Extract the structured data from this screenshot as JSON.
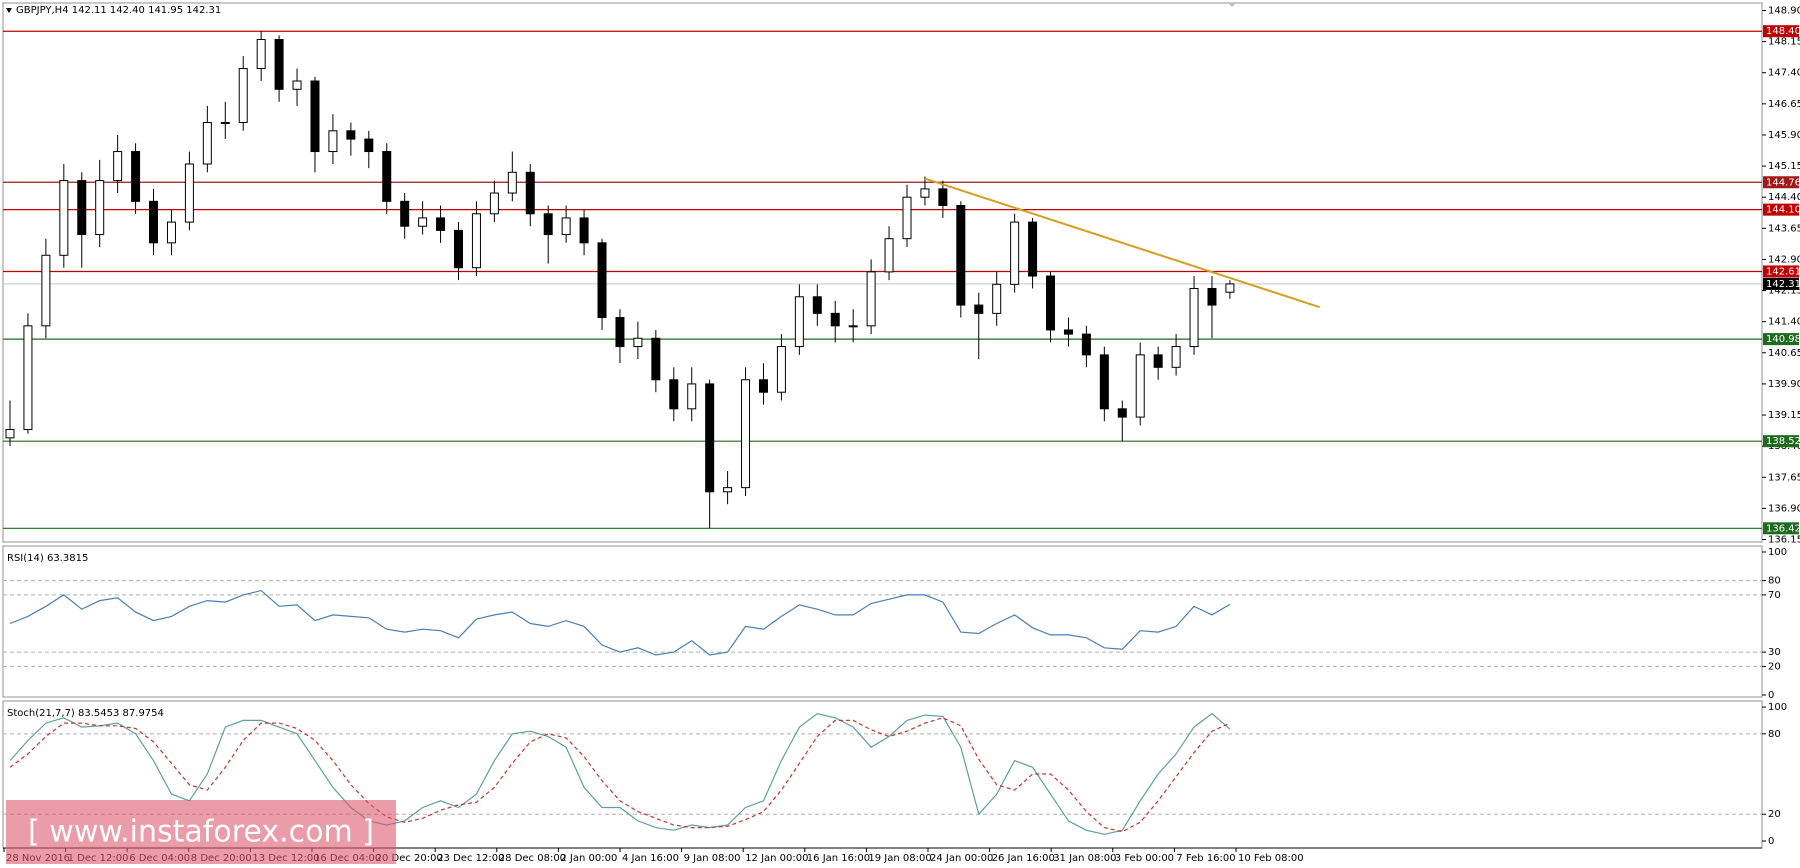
{
  "chart_data": [
    {
      "type": "candlestick",
      "title": "GBPJPY,H4 142.11 142.40 141.95 142.31",
      "open": [
        138.6,
        138.8,
        141.3,
        143.0,
        144.8,
        143.5,
        144.8,
        145.5,
        144.3,
        143.3,
        143.8,
        145.2,
        146.2,
        146.2,
        147.5,
        148.2,
        147.0,
        147.2,
        145.5,
        146.0,
        145.8,
        145.5,
        144.3,
        143.7,
        143.9,
        143.6,
        142.7,
        144.0,
        144.5,
        145.0,
        144.0,
        143.5,
        143.9,
        143.3,
        141.5,
        140.8,
        141.0,
        140.0,
        139.3,
        139.9,
        137.3,
        137.4,
        140.0,
        139.7,
        140.8,
        142.0,
        141.6,
        141.3,
        141.3,
        142.6,
        143.4,
        144.4,
        144.6,
        144.2,
        141.8,
        141.6,
        142.3,
        143.8,
        142.5,
        141.2,
        141.1,
        140.6,
        139.3,
        139.1,
        140.6,
        140.3,
        140.8,
        142.2,
        142.11
      ],
      "high": [
        139.5,
        141.6,
        143.4,
        145.2,
        145.0,
        145.3,
        145.9,
        145.7,
        144.6,
        144.1,
        145.5,
        146.6,
        146.7,
        147.8,
        148.4,
        148.3,
        147.5,
        147.3,
        146.4,
        146.2,
        146.0,
        145.7,
        144.5,
        144.3,
        144.2,
        143.8,
        144.3,
        144.8,
        145.5,
        145.2,
        144.2,
        144.2,
        144.1,
        143.4,
        141.7,
        141.4,
        141.2,
        140.3,
        140.3,
        140.0,
        137.8,
        140.3,
        140.4,
        141.1,
        142.3,
        142.3,
        141.9,
        141.7,
        142.9,
        143.7,
        144.7,
        144.9,
        144.8,
        144.3,
        142.1,
        142.6,
        144.0,
        143.9,
        142.6,
        141.5,
        141.3,
        140.8,
        139.5,
        140.9,
        140.8,
        141.1,
        142.5,
        142.5,
        142.4
      ],
      "low": [
        138.4,
        138.7,
        141.0,
        142.7,
        142.7,
        143.2,
        144.5,
        144.0,
        143.0,
        143.0,
        143.6,
        145.0,
        145.8,
        146.0,
        147.2,
        146.7,
        146.6,
        145.0,
        145.2,
        145.4,
        145.1,
        144.0,
        143.4,
        143.5,
        143.3,
        142.4,
        142.5,
        143.8,
        144.3,
        143.7,
        142.8,
        143.3,
        143.0,
        141.2,
        140.4,
        140.5,
        139.7,
        139.0,
        139.0,
        136.42,
        137.0,
        137.2,
        139.4,
        139.5,
        140.6,
        141.3,
        140.9,
        140.9,
        141.1,
        142.4,
        143.2,
        144.2,
        143.9,
        141.5,
        140.5,
        141.3,
        142.1,
        142.2,
        140.9,
        140.8,
        140.3,
        139.0,
        138.52,
        138.9,
        140.0,
        140.1,
        140.6,
        141.0,
        141.95
      ],
      "close": [
        138.8,
        141.3,
        143.0,
        144.8,
        143.5,
        144.8,
        145.5,
        144.3,
        143.3,
        143.8,
        145.2,
        146.2,
        146.2,
        147.5,
        148.2,
        147.0,
        147.2,
        145.5,
        146.0,
        145.8,
        145.5,
        144.3,
        143.7,
        143.9,
        143.6,
        142.7,
        144.0,
        144.5,
        145.0,
        144.0,
        143.5,
        143.9,
        143.3,
        141.5,
        140.8,
        141.0,
        140.0,
        139.3,
        139.9,
        137.3,
        137.4,
        140.0,
        139.7,
        140.8,
        142.0,
        141.6,
        141.3,
        141.3,
        142.6,
        143.4,
        144.4,
        144.6,
        144.2,
        141.8,
        141.6,
        142.3,
        143.8,
        142.5,
        141.2,
        141.1,
        140.6,
        139.3,
        139.1,
        140.6,
        140.3,
        140.8,
        142.2,
        141.8,
        142.31
      ],
      "up_color": "#ffffff",
      "down_color": "#000000",
      "ylim": [
        136.09,
        149.08
      ],
      "yticks": [
        {
          "value": 148.9,
          "label": "148.90"
        },
        148.15,
        {
          "value": 147.4,
          "label": "147.40"
        },
        146.65,
        {
          "value": 145.9,
          "label": "145.90"
        },
        145.15,
        {
          "value": 144.4,
          "label": "144.40"
        },
        143.65,
        {
          "value": 142.9,
          "label": "142.90"
        },
        142.15,
        {
          "value": 141.4,
          "label": "141.40"
        },
        140.65,
        {
          "value": 139.9,
          "label": "139.90"
        },
        139.15,
        {
          "value": 138.4,
          "label": "138.40"
        },
        137.65,
        {
          "value": 136.9,
          "label": "136.90"
        },
        136.15
      ],
      "levels": [
        {
          "value": 148.4,
          "label": "148.40",
          "color": "#c00000"
        },
        {
          "value": 144.76,
          "color": "#a01818"
        },
        {
          "value": 144.1,
          "label": "144.10",
          "color": "#c00000"
        },
        {
          "value": 142.61,
          "color": "#c00000"
        },
        {
          "value": 140.98,
          "color": "#1e6b1e"
        },
        {
          "value": 138.52,
          "color": "#1e6b1e"
        },
        {
          "value": 136.42,
          "color": "#1e6b1e"
        }
      ],
      "bid": {
        "value": 142.31,
        "color": "#000000",
        "line_color": "#c8c8c8"
      },
      "trendline": {
        "color": "#d4a020",
        "x": [
          51,
          73
        ],
        "y": [
          144.85,
          141.75
        ]
      }
    },
    {
      "type": "line",
      "title": "RSI(14) 63.3815",
      "color": "#4a7fb5",
      "values": [
        50,
        55,
        62,
        70,
        60,
        66,
        68,
        58,
        52,
        55,
        62,
        66,
        65,
        70,
        73,
        62,
        63,
        52,
        56,
        55,
        54,
        46,
        44,
        46,
        45,
        40,
        53,
        56,
        58,
        50,
        48,
        52,
        48,
        35,
        30,
        33,
        28,
        30,
        38,
        28,
        30,
        48,
        46,
        55,
        63,
        60,
        56,
        56,
        64,
        67,
        70,
        70,
        65,
        44,
        43,
        50,
        56,
        47,
        42,
        42,
        40,
        33,
        32,
        45,
        44,
        48,
        62,
        56,
        63.3815
      ],
      "ylim": [
        -1.4,
        104.2
      ],
      "yticks": [
        100,
        80,
        70,
        30,
        20,
        0
      ],
      "levels": [
        80,
        70,
        30,
        20
      ]
    },
    {
      "type": "line",
      "title": "Stoch(21,7,7) 83.5453 87.9754",
      "series": [
        {
          "color": "#5f9ea0",
          "dash": false,
          "values": [
            60,
            75,
            88,
            92,
            85,
            86,
            88,
            80,
            60,
            35,
            30,
            50,
            85,
            90,
            90,
            85,
            80,
            60,
            40,
            25,
            15,
            12,
            15,
            25,
            30,
            25,
            35,
            60,
            80,
            82,
            78,
            70,
            40,
            25,
            25,
            15,
            10,
            8,
            12,
            10,
            12,
            25,
            30,
            60,
            85,
            95,
            92,
            85,
            70,
            78,
            90,
            94,
            93,
            70,
            20,
            35,
            60,
            55,
            35,
            15,
            8,
            5,
            8,
            30,
            50,
            65,
            85,
            95,
            83.5453
          ]
        },
        {
          "color": "#c0392b",
          "dash": true,
          "values": [
            55,
            65,
            78,
            88,
            88,
            86,
            86,
            84,
            74,
            58,
            42,
            38,
            55,
            75,
            88,
            88,
            84,
            75,
            60,
            42,
            28,
            18,
            14,
            17,
            23,
            27,
            29,
            40,
            58,
            74,
            80,
            77,
            63,
            45,
            30,
            22,
            17,
            12,
            10,
            10,
            11,
            16,
            22,
            38,
            58,
            78,
            90,
            90,
            83,
            78,
            82,
            88,
            92,
            86,
            61,
            42,
            38,
            50,
            50,
            38,
            22,
            10,
            7,
            14,
            30,
            48,
            66,
            82,
            87.9754
          ]
        }
      ],
      "ylim": [
        -5.2,
        104.5
      ],
      "yticks": [
        100,
        80,
        20,
        0
      ],
      "levels": [
        80,
        20
      ],
      "x_tick_labels": [
        "28 Nov 2016",
        "1 Dec 12:00",
        "6 Dec 04:00",
        "8 Dec 20:00",
        "13 Dec 12:00",
        "16 Dec 04:00",
        "20 Dec 20:00",
        "23 Dec 12:00",
        "28 Dec 08:00",
        "2 Jan 00:00",
        "4 Jan 16:00",
        "9 Jan 08:00",
        "12 Jan 00:00",
        "16 Jan 16:00",
        "19 Jan 08:00",
        "24 Jan 00:00",
        "26 Jan 16:00",
        "31 Jan 08:00",
        "3 Feb 00:00",
        "7 Feb 16:00",
        "10 Feb 08:00"
      ]
    }
  ],
  "watermark": "[ www.instaforex.com ]"
}
